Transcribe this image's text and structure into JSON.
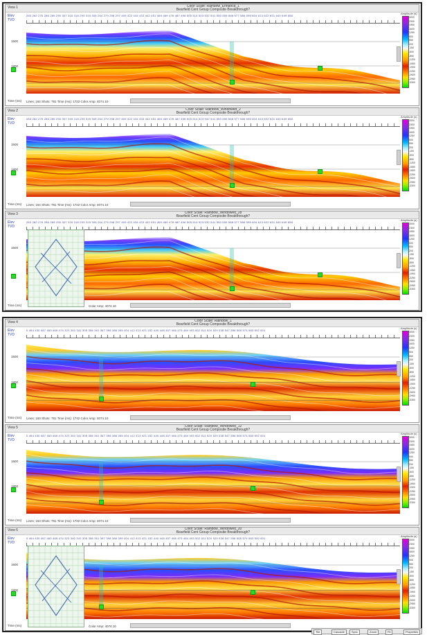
{
  "colors": {
    "accent": "#2a3fa8",
    "marker": "#22dd22"
  },
  "panels": [
    {
      "name": "View 1",
      "title1": "Color Scale: Rainbow_Enhanc8_1",
      "title2": "Bearfield Cent Group Composite Breakthrough?",
      "ylabel1": "Elev",
      "ylabel2": "TVD",
      "traces": "283 282 276 286 285 290 307 316 318 293 315 305 264 279 298 297 409 422 434 433 442 451 460 469 478 487 496 505 514 523 532 541 550 559 568 577 586 595 604 613 622 631 640 649 658",
      "status": "Lines: 164 Shots: 781 Time (ms): 1722 Color Amp: 4074.10",
      "time_label": "Time (ms)",
      "ticks": [
        "1500",
        "1800"
      ],
      "scale_title": "Amplitude (s)",
      "scale_ticks": [
        "3000",
        "2300",
        "1950",
        "1600",
        "1250",
        "900",
        "550",
        "200",
        "-150",
        "-500",
        "-850",
        "-1200",
        "-1550",
        "-1900",
        "-2250",
        "-2600",
        "-2950",
        "-3300"
      ]
    },
    {
      "name": "View 2",
      "title1": "Color Scale: Rainbow_Windowed_2",
      "title2": "Bearfield Cent Group Composite Breakthrough?",
      "ylabel1": "Elev",
      "ylabel2": "TVD",
      "traces": "283 282 276 286 285 290 307 316 318 293 315 305 264 279 298 297 409 422 434 433 442 451 460 469 478 487 496 505 514 523 532 541 550 559 568 577 586 595 604 613 622 631 640 649 658",
      "status": "Lines: 164 Shots: 781 Time (ms): 1722 Color Amp: 4074.10",
      "time_label": "Time (ms)",
      "ticks": [
        "1500",
        "1800"
      ],
      "scale_title": "Amplitude (s)",
      "scale_ticks": [
        "3000",
        "2300",
        "1950",
        "1600",
        "1250",
        "900",
        "550",
        "200",
        "-150",
        "-500",
        "-850",
        "-1200",
        "-1550",
        "-1900",
        "-2250",
        "-2600",
        "-2950",
        "-3300"
      ]
    },
    {
      "name": "View 3",
      "title1": "Color Scale: Rainbow_Windowed_28",
      "title2": "Bearfield Cent Group Composite Breakthrough?",
      "ylabel1": "Elev",
      "ylabel2": "TVD",
      "traces": "283 282 276 286 285 290 307 316 318 293 315 305 264 279 298 297 409 422 434 433 442 451 460 469 478 487 496 505 514 523 532 541 550 559 568 577 586 595 604 613 622 631 640 649 658",
      "status": "Color Amp: 4074.10",
      "time_label": "Time (ms)",
      "ticks": [
        "1500"
      ],
      "scale_title": "Amplitude (s)",
      "scale_ticks": [
        "3000",
        "2300",
        "1950",
        "1600",
        "1250",
        "900",
        "550",
        "200",
        "-150",
        "-500",
        "-850",
        "-1200",
        "-1550",
        "-1900",
        "-2250",
        "-2600",
        "-2950",
        "-3300"
      ]
    },
    {
      "name": "View 4",
      "title1": "Color Scale: Rainbow_1",
      "title2": "Bearfield Cent Group Composite Breakthrough?",
      "ylabel1": "Elev",
      "ylabel2": "TVD",
      "traces": "0 464 430 467 460 465 474 323 340 341 305 358 361 367 398 386 399 404 412 413 421 432 440 448 457 466 475 484 493 502 511 520 529 538 547 556 565 574 583 592 601",
      "status": "Lines: 163 Shots: 781 Time (ms): 1742 Color Amp: 4074.10",
      "time_label": "Time (ms)",
      "ticks": [
        "1500",
        "1800"
      ],
      "scale_title": "Amplitude (s)",
      "scale_ticks": [
        "3000",
        "2300",
        "1950",
        "1600",
        "1250",
        "900",
        "550",
        "200",
        "-150",
        "-500",
        "-850",
        "-1200",
        "-1550",
        "-1900",
        "-2250",
        "-2600",
        "-2950",
        "-3300"
      ]
    },
    {
      "name": "View 5",
      "title1": "Color Scale: Rainbow_Windowed_12",
      "title2": "Bearfield Cent Group Composite Breakthrough?",
      "ylabel1": "Elev",
      "ylabel2": "TVD",
      "traces": "0 464 430 467 460 465 474 323 340 341 305 358 361 367 398 386 399 404 412 413 421 432 440 448 457 466 475 484 493 502 511 520 529 538 547 556 565 574 583 592 601",
      "status": "Lines: 163 Shots: 781 Time (ms): 1742 Color Amp: 4074.10",
      "time_label": "Time (ms)",
      "ticks": [
        "1500",
        "1800"
      ],
      "scale_title": "Amplitude (s)",
      "scale_ticks": [
        "3000",
        "2300",
        "1950",
        "1600",
        "1250",
        "900",
        "550",
        "200",
        "-150",
        "-500",
        "-850",
        "-1200",
        "-1550",
        "-1900",
        "-2250",
        "-2600",
        "-2950",
        "-3300"
      ]
    },
    {
      "name": "View 6",
      "title1": "Color Scale: Rainbow_Windowed_20",
      "title2": "Bearfield Cent Group Composite Breakthrough?",
      "ylabel1": "Elev",
      "ylabel2": "TVD",
      "traces": "0 464 430 467 460 465 474 323 340 341 305 358 361 367 398 386 399 404 412 413 421 432 440 448 457 466 475 484 493 502 511 520 529 538 547 556 565 574 583 592 601",
      "status": "Color Amp: 4074.10",
      "time_label": "Time (ms)",
      "ticks": [
        "1500",
        "1800"
      ],
      "scale_title": "Amplitude (s)",
      "scale_ticks": [
        "3000",
        "2300",
        "1950",
        "1600",
        "1250",
        "900",
        "550",
        "200",
        "-150",
        "-500",
        "-850",
        "-1200",
        "-1550",
        "-1900",
        "-2250",
        "-2600",
        "-2950",
        "-3300"
      ]
    }
  ],
  "taskbar": {
    "buttons": [
      "Tile",
      "Cascade",
      "Sync",
      "Zoom",
      "Fit",
      "Properties"
    ]
  }
}
